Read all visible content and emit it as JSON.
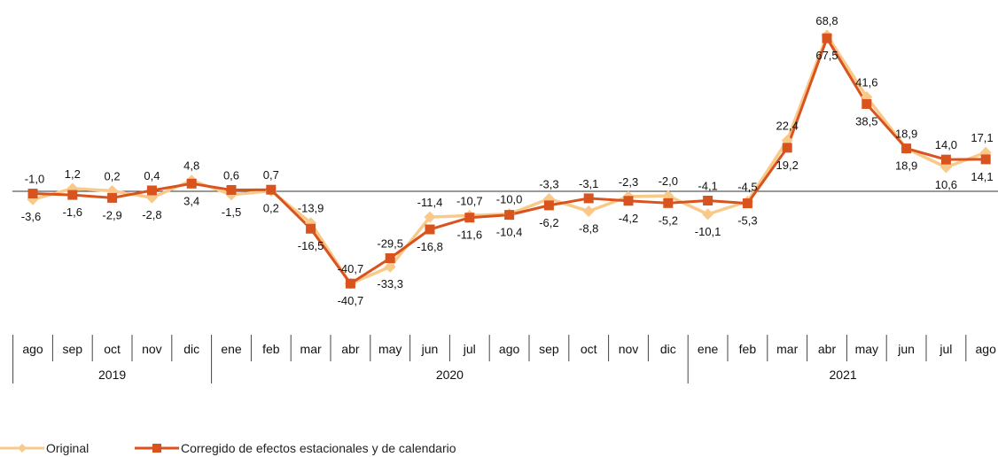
{
  "chart_data": {
    "type": "line",
    "categories": [
      "ago",
      "sep",
      "oct",
      "nov",
      "dic",
      "ene",
      "feb",
      "mar",
      "abr",
      "may",
      "jun",
      "jul",
      "ago",
      "sep",
      "oct",
      "nov",
      "dic",
      "ene",
      "feb",
      "mar",
      "abr",
      "may",
      "jun",
      "jul",
      "ago"
    ],
    "years": [
      {
        "label": "2019",
        "start": 0,
        "end": 4
      },
      {
        "label": "2020",
        "start": 5,
        "end": 16
      },
      {
        "label": "2021",
        "start": 17,
        "end": 24
      }
    ],
    "series": [
      {
        "name": "Original",
        "color": "#F9C98A",
        "marker": "diamond",
        "values": [
          -3.6,
          1.2,
          0.2,
          -2.8,
          4.8,
          -1.5,
          0.2,
          -13.9,
          -40.7,
          -33.3,
          -11.4,
          -10.7,
          -10.0,
          -3.3,
          -8.8,
          -2.3,
          -2.0,
          -10.1,
          -4.5,
          22.4,
          68.8,
          41.6,
          18.9,
          10.6,
          17.1
        ],
        "labels": [
          "-3,6",
          "1,2",
          "0,2",
          "-2,8",
          "4,8",
          "-1,5",
          "0,2",
          "-13,9",
          "-40,7",
          "-33,3",
          "-11,4",
          "-10,7",
          "-10,0",
          "-3,3",
          "-8,8",
          "-2,3",
          "-2,0",
          "-10,1",
          "-4,5",
          "22,4",
          "68,8",
          "41,6",
          "18,9",
          "10,6",
          "17,1"
        ]
      },
      {
        "name": "Corregido de efectos estacionales y de calendario",
        "color": "#D9531E",
        "marker": "square",
        "values": [
          -1.0,
          -1.6,
          -2.9,
          0.4,
          3.4,
          0.6,
          0.7,
          -16.5,
          -40.7,
          -29.5,
          -16.8,
          -11.6,
          -10.4,
          -6.2,
          -3.1,
          -4.2,
          -5.2,
          -4.1,
          -5.3,
          19.2,
          67.5,
          38.5,
          18.9,
          14.0,
          14.1
        ],
        "labels": [
          "-1,0",
          "-1,6",
          "-2,9",
          "0,4",
          "3,4",
          "0,6",
          "0,7",
          "-16,5",
          "-40,7",
          "-29,5",
          "-16,8",
          "-11,6",
          "-10,4",
          "-6,2",
          "-3,1",
          "-4,2",
          "-5,2",
          "-4,1",
          "-5,3",
          "19,2",
          "67,5",
          "38,5",
          "18,9",
          "14,0",
          "14,1"
        ]
      }
    ],
    "legend_position": "bottom-left",
    "grid": false
  },
  "legend": {
    "original_label": "Original",
    "corrected_label": "Corregido de efectos estacionales y de calendario"
  }
}
